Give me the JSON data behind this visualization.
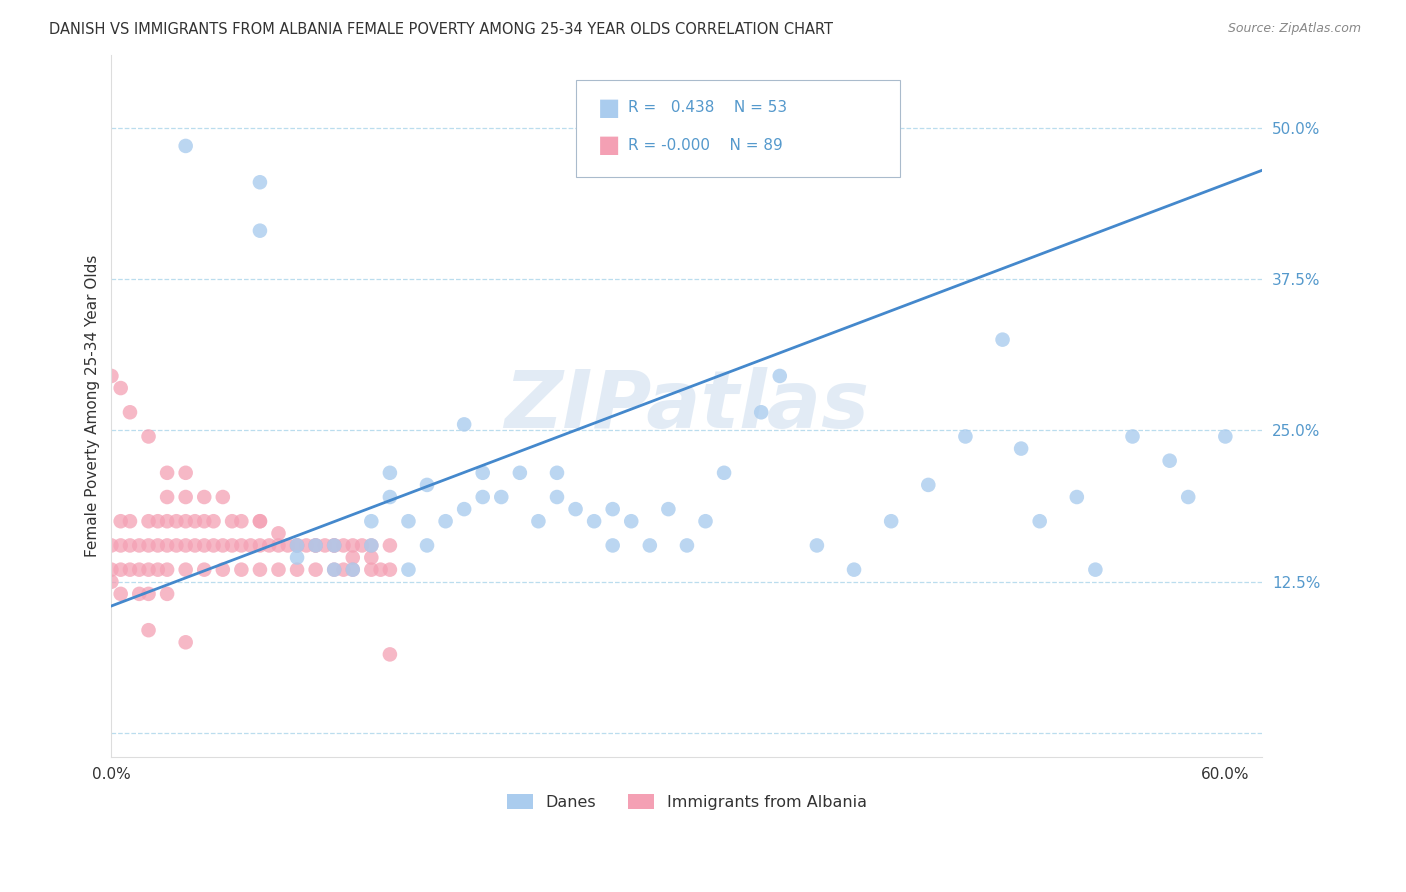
{
  "title": "DANISH VS IMMIGRANTS FROM ALBANIA FEMALE POVERTY AMONG 25-34 YEAR OLDS CORRELATION CHART",
  "source": "Source: ZipAtlas.com",
  "ylabel": "Female Poverty Among 25-34 Year Olds",
  "watermark": "ZIPatlas",
  "xlim": [
    0.0,
    0.62
  ],
  "ylim": [
    -0.02,
    0.56
  ],
  "legend_R_danes": "0.438",
  "legend_N_danes": "53",
  "legend_R_albania": "-0.000",
  "legend_N_albania": "89",
  "danes_color": "#aaccee",
  "albania_color": "#f4a0b4",
  "trendline_color": "#4488cc",
  "axis_tick_color": "#5599cc",
  "grid_color": "#bbddee",
  "text_color": "#333333",
  "source_color": "#888888",
  "title_fontsize": 10.5,
  "tick_fontsize": 11,
  "ylabel_fontsize": 11,
  "danes_x": [
    0.04,
    0.08,
    0.08,
    0.1,
    0.1,
    0.11,
    0.12,
    0.12,
    0.13,
    0.14,
    0.14,
    0.15,
    0.15,
    0.16,
    0.16,
    0.17,
    0.17,
    0.18,
    0.19,
    0.19,
    0.2,
    0.2,
    0.21,
    0.22,
    0.23,
    0.24,
    0.24,
    0.25,
    0.26,
    0.27,
    0.27,
    0.28,
    0.29,
    0.3,
    0.31,
    0.32,
    0.33,
    0.35,
    0.36,
    0.38,
    0.4,
    0.42,
    0.44,
    0.46,
    0.48,
    0.49,
    0.5,
    0.52,
    0.53,
    0.55,
    0.57,
    0.58,
    0.6
  ],
  "danes_y": [
    0.485,
    0.455,
    0.415,
    0.145,
    0.155,
    0.155,
    0.155,
    0.135,
    0.135,
    0.175,
    0.155,
    0.195,
    0.215,
    0.175,
    0.135,
    0.205,
    0.155,
    0.175,
    0.185,
    0.255,
    0.195,
    0.215,
    0.195,
    0.215,
    0.175,
    0.195,
    0.215,
    0.185,
    0.175,
    0.155,
    0.185,
    0.175,
    0.155,
    0.185,
    0.155,
    0.175,
    0.215,
    0.265,
    0.295,
    0.155,
    0.135,
    0.175,
    0.205,
    0.245,
    0.325,
    0.235,
    0.175,
    0.195,
    0.135,
    0.245,
    0.225,
    0.195,
    0.245
  ],
  "albania_x": [
    0.0,
    0.0,
    0.0,
    0.005,
    0.005,
    0.005,
    0.005,
    0.01,
    0.01,
    0.01,
    0.015,
    0.015,
    0.015,
    0.02,
    0.02,
    0.02,
    0.02,
    0.025,
    0.025,
    0.025,
    0.03,
    0.03,
    0.03,
    0.03,
    0.03,
    0.035,
    0.035,
    0.04,
    0.04,
    0.04,
    0.04,
    0.045,
    0.045,
    0.05,
    0.05,
    0.05,
    0.055,
    0.055,
    0.06,
    0.06,
    0.065,
    0.065,
    0.07,
    0.07,
    0.075,
    0.08,
    0.08,
    0.08,
    0.085,
    0.09,
    0.09,
    0.095,
    0.1,
    0.1,
    0.105,
    0.11,
    0.11,
    0.115,
    0.12,
    0.12,
    0.125,
    0.125,
    0.13,
    0.13,
    0.135,
    0.14,
    0.14,
    0.145,
    0.15,
    0.15,
    0.005,
    0.01,
    0.02,
    0.03,
    0.04,
    0.05,
    0.06,
    0.07,
    0.08,
    0.09,
    0.1,
    0.11,
    0.12,
    0.13,
    0.14,
    0.15,
    0.0,
    0.02,
    0.04
  ],
  "albania_y": [
    0.155,
    0.135,
    0.125,
    0.175,
    0.155,
    0.135,
    0.115,
    0.155,
    0.135,
    0.175,
    0.155,
    0.135,
    0.115,
    0.175,
    0.155,
    0.135,
    0.115,
    0.155,
    0.175,
    0.135,
    0.195,
    0.175,
    0.155,
    0.135,
    0.115,
    0.155,
    0.175,
    0.195,
    0.175,
    0.155,
    0.135,
    0.155,
    0.175,
    0.155,
    0.175,
    0.135,
    0.155,
    0.175,
    0.155,
    0.135,
    0.155,
    0.175,
    0.155,
    0.135,
    0.155,
    0.175,
    0.155,
    0.135,
    0.155,
    0.155,
    0.135,
    0.155,
    0.155,
    0.135,
    0.155,
    0.155,
    0.135,
    0.155,
    0.135,
    0.155,
    0.155,
    0.135,
    0.155,
    0.135,
    0.155,
    0.135,
    0.155,
    0.135,
    0.155,
    0.135,
    0.285,
    0.265,
    0.245,
    0.215,
    0.215,
    0.195,
    0.195,
    0.175,
    0.175,
    0.165,
    0.155,
    0.155,
    0.155,
    0.145,
    0.145,
    0.065,
    0.295,
    0.085,
    0.075
  ],
  "trendline_x0": 0.0,
  "trendline_y0": 0.105,
  "trendline_x1": 0.62,
  "trendline_y1": 0.465
}
